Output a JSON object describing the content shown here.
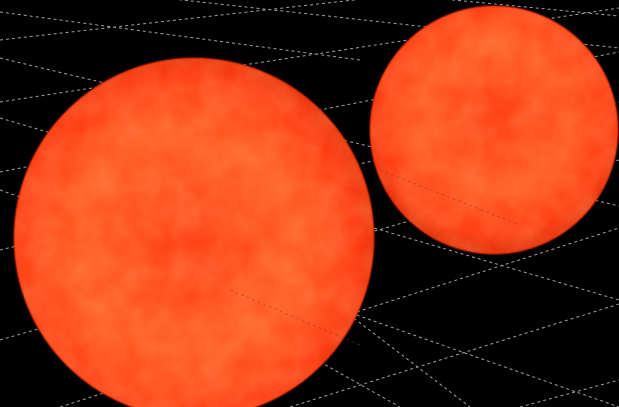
{
  "scene": {
    "background_color": "#000000",
    "grid_color": "#bdbdbd",
    "objects": [
      {
        "name": "large-red-sphere",
        "base_color": "#ff3c12",
        "highlight_color": "#ff5a22",
        "shadow_color": "#e22a08"
      },
      {
        "name": "small-red-sphere",
        "base_color": "#ff3a10",
        "highlight_color": "#ff5620",
        "shadow_color": "#e02806"
      }
    ]
  }
}
